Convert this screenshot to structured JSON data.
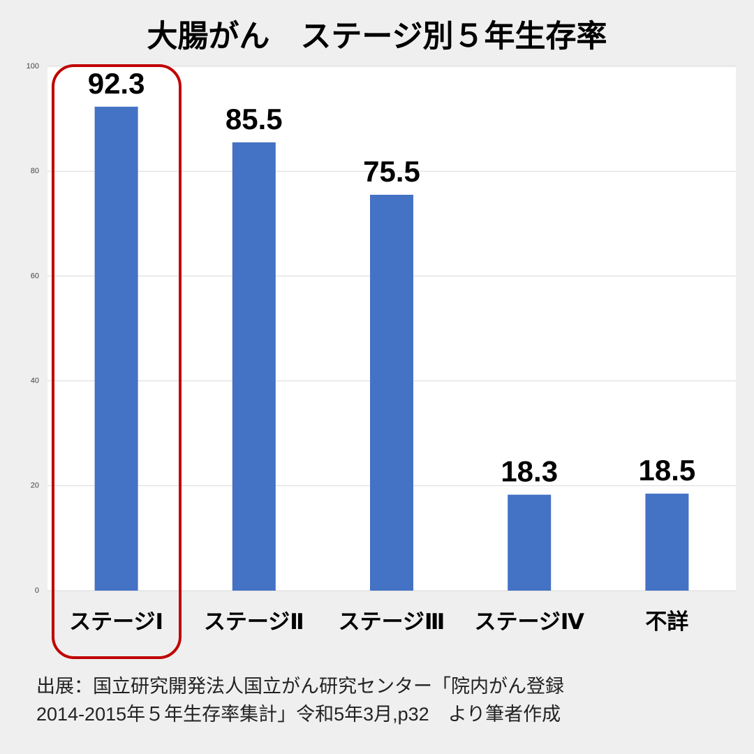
{
  "chart_data": {
    "type": "bar",
    "title": "大腸がん　ステージ別５年生存率",
    "categories": [
      "ステージⅠ",
      "ステージⅡ",
      "ステージⅢ",
      "ステージⅣ",
      "不詳"
    ],
    "values": [
      92.3,
      85.5,
      75.5,
      18.3,
      18.5
    ],
    "color": "#4472c4",
    "ylim": [
      0,
      100
    ],
    "yticks": [
      0,
      20,
      40,
      60,
      80,
      100
    ],
    "grid": true,
    "source": [
      "出展：国立研究開発法人国立がん研究センター「院内がん登録",
      "2014-2015年５年生存率集計」令和5年3月,p32　より筆者作成"
    ]
  }
}
